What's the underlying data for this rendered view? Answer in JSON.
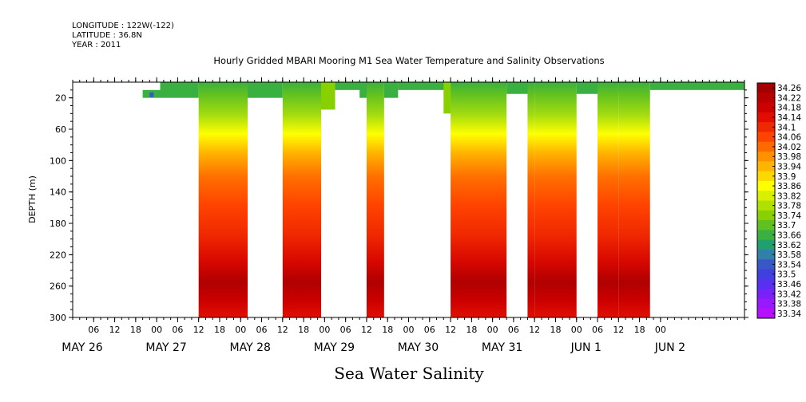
{
  "header": {
    "longitude": "LONGITUDE : 122W(-122)",
    "latitude": "LATITUDE : 36.8N",
    "year": "YEAR : 2011"
  },
  "chart_data": {
    "type": "heatmap",
    "title": "Hourly Gridded MBARI Mooring M1 Sea Water Temperature and Salinity Observations",
    "xlabel": "Sea Water Salinity",
    "ylabel": "DEPTH (m)",
    "xlim": [
      "2011-05-25T12:00",
      "2011-06-02T12:00"
    ],
    "ylim": [
      300,
      0
    ],
    "y_ticks": [
      20,
      60,
      100,
      140,
      180,
      220,
      260,
      300
    ],
    "x_hour_ticks": [
      "06",
      "12",
      "18",
      "00",
      "06",
      "12",
      "18",
      "00",
      "06",
      "12",
      "18",
      "00",
      "06",
      "12",
      "18",
      "00",
      "06",
      "12",
      "18",
      "00",
      "06",
      "12",
      "18",
      "00",
      "06",
      "12",
      "18",
      "00"
    ],
    "x_day_labels": [
      "MAY 26",
      "MAY 27",
      "MAY 28",
      "MAY 29",
      "MAY 30",
      "MAY 31",
      "JUN  1",
      "JUN  2"
    ],
    "colorbar": {
      "levels": [
        "34.26",
        "34.22",
        "34.18",
        "34.14",
        "34.1",
        "34.06",
        "34.02",
        "33.98",
        "33.94",
        "33.9",
        "33.86",
        "33.82",
        "33.78",
        "33.74",
        "33.7",
        "33.66",
        "33.62",
        "33.58",
        "33.54",
        "33.5",
        "33.46",
        "33.42",
        "33.38",
        "33.34"
      ]
    },
    "data_blocks": [
      {
        "start": "2011-05-26T08:00",
        "end": "2011-05-26T13:00",
        "depth_top": 10,
        "depth_bottom": 20
      },
      {
        "start": "2011-05-26T13:00",
        "end": "2011-05-27T00:00",
        "depth_top": 0,
        "depth_bottom": 20
      },
      {
        "start": "2011-05-27T00:00",
        "end": "2011-05-27T14:00",
        "depth_top": 0,
        "depth_bottom": 300
      },
      {
        "start": "2011-05-27T14:00",
        "end": "2011-05-28T00:00",
        "depth_top": 0,
        "depth_bottom": 20
      },
      {
        "start": "2011-05-28T00:00",
        "end": "2011-05-28T11:00",
        "depth_top": 0,
        "depth_bottom": 300
      },
      {
        "start": "2011-05-28T11:00",
        "end": "2011-05-28T15:00",
        "depth_top": 0,
        "depth_bottom": 35
      },
      {
        "start": "2011-05-28T15:00",
        "end": "2011-05-29T00:00",
        "depth_top": 0,
        "depth_bottom": 10
      },
      {
        "start": "2011-05-28T22:00",
        "end": "2011-05-29T02:00",
        "depth_top": 0,
        "depth_bottom": 20
      },
      {
        "start": "2011-05-29T00:00",
        "end": "2011-05-29T05:00",
        "depth_top": 0,
        "depth_bottom": 300
      },
      {
        "start": "2011-05-29T05:00",
        "end": "2011-05-29T09:00",
        "depth_top": 0,
        "depth_bottom": 20
      },
      {
        "start": "2011-05-29T09:00",
        "end": "2011-05-30T00:00",
        "depth_top": 0,
        "depth_bottom": 10
      },
      {
        "start": "2011-05-29T22:00",
        "end": "2011-05-30T00:00",
        "depth_top": 0,
        "depth_bottom": 40
      },
      {
        "start": "2011-05-30T00:00",
        "end": "2011-05-30T16:00",
        "depth_top": 0,
        "depth_bottom": 300
      },
      {
        "start": "2011-05-30T16:00",
        "end": "2011-05-31T00:00",
        "depth_top": 0,
        "depth_bottom": 15
      },
      {
        "start": "2011-05-30T22:00",
        "end": "2011-05-31T00:00",
        "depth_top": 0,
        "depth_bottom": 300
      },
      {
        "start": "2011-05-31T00:00",
        "end": "2011-05-31T12:00",
        "depth_top": 0,
        "depth_bottom": 300
      },
      {
        "start": "2011-05-31T12:00",
        "end": "2011-06-01T00:00",
        "depth_top": 0,
        "depth_bottom": 15
      },
      {
        "start": "2011-05-31T18:00",
        "end": "2011-06-01T00:00",
        "depth_top": 0,
        "depth_bottom": 300
      },
      {
        "start": "2011-06-01T00:00",
        "end": "2011-06-01T09:00",
        "depth_top": 0,
        "depth_bottom": 300
      },
      {
        "start": "2011-06-01T09:00",
        "end": "2011-06-02T12:00",
        "depth_top": 0,
        "depth_bottom": 10
      }
    ]
  },
  "colors": {
    "palette": [
      "#a50000",
      "#b80000",
      "#cc0000",
      "#e00d00",
      "#f02800",
      "#ff4400",
      "#ff6a00",
      "#ff9000",
      "#ffb400",
      "#ffd800",
      "#ffff00",
      "#d8f000",
      "#b0e000",
      "#88d000",
      "#60c020",
      "#3ab040",
      "#20a070",
      "#3080a8",
      "#3858c8",
      "#4040e0",
      "#5830f0",
      "#7a20f8",
      "#9a18ff",
      "#b410ff"
    ]
  }
}
